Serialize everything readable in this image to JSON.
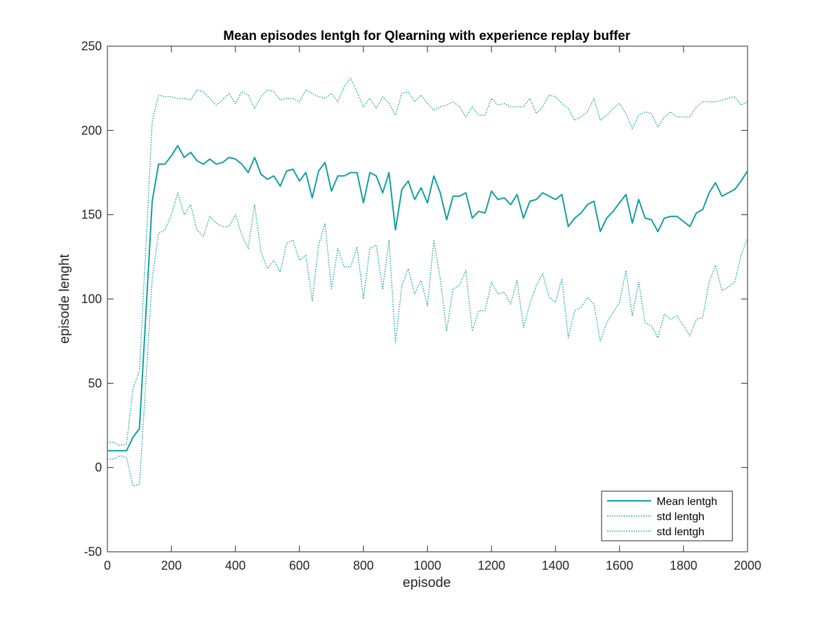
{
  "chart_data": {
    "type": "line",
    "title": "Mean episodes lentgh for Qlearning with experience replay buffer",
    "xlabel": "episode",
    "ylabel": "episode lenght",
    "xlim": [
      0,
      2000
    ],
    "ylim": [
      -50,
      250
    ],
    "xticks": [
      0,
      200,
      400,
      600,
      800,
      1000,
      1200,
      1400,
      1600,
      1800,
      2000
    ],
    "yticks": [
      -50,
      0,
      50,
      100,
      150,
      200,
      250
    ],
    "grid": false,
    "legend_position": "bottom-right",
    "line_color": "#109e9e",
    "x": [
      0,
      20,
      40,
      60,
      80,
      100,
      120,
      140,
      160,
      180,
      200,
      220,
      240,
      260,
      280,
      300,
      320,
      340,
      360,
      380,
      400,
      420,
      440,
      460,
      480,
      500,
      520,
      540,
      560,
      580,
      600,
      620,
      640,
      660,
      680,
      700,
      720,
      740,
      760,
      780,
      800,
      820,
      840,
      860,
      880,
      900,
      920,
      940,
      960,
      980,
      1000,
      1020,
      1040,
      1060,
      1080,
      1100,
      1120,
      1140,
      1160,
      1180,
      1200,
      1220,
      1240,
      1260,
      1280,
      1300,
      1320,
      1340,
      1360,
      1380,
      1400,
      1420,
      1440,
      1460,
      1480,
      1500,
      1520,
      1540,
      1560,
      1580,
      1600,
      1620,
      1640,
      1660,
      1680,
      1700,
      1720,
      1740,
      1760,
      1780,
      1800,
      1820,
      1840,
      1860,
      1880,
      1900,
      1920,
      1940,
      1960,
      1980,
      2000
    ],
    "series": [
      {
        "name": "Mean lentgh",
        "style": "solid",
        "values": [
          10,
          10,
          10,
          10,
          18,
          23,
          90,
          158,
          180,
          180,
          185,
          191,
          184,
          187,
          182,
          180,
          183,
          180,
          181,
          184,
          183,
          180,
          175,
          184,
          174,
          171,
          173,
          167,
          176,
          177,
          170,
          175,
          160,
          176,
          181,
          164,
          173,
          173,
          175,
          175,
          157,
          175,
          173,
          163,
          175,
          141,
          165,
          170,
          159,
          166,
          157,
          173,
          163,
          147,
          161,
          161,
          163,
          148,
          152,
          151,
          164,
          159,
          160,
          156,
          162,
          148,
          158,
          159,
          163,
          161,
          159,
          162,
          143,
          148,
          151,
          156,
          158,
          140,
          148,
          152,
          157,
          162,
          145,
          159,
          148,
          147,
          140,
          148,
          149,
          149,
          146,
          143,
          151,
          153,
          163,
          169,
          161,
          163,
          165,
          170,
          176
        ]
      },
      {
        "name": "std lentgh",
        "style": "dotted",
        "values": [
          15,
          15,
          13,
          14,
          47,
          57,
          130,
          205,
          221,
          220,
          220,
          219,
          219,
          218,
          224,
          223,
          219,
          215,
          218,
          222,
          216,
          223,
          221,
          213,
          220,
          224,
          223,
          218,
          219,
          219,
          217,
          224,
          222,
          220,
          219,
          222,
          217,
          226,
          231,
          223,
          214,
          219,
          213,
          220,
          216,
          209,
          222,
          223,
          217,
          221,
          216,
          212,
          214,
          215,
          217,
          214,
          208,
          214,
          209,
          209,
          219,
          215,
          216,
          214,
          214,
          214,
          219,
          210,
          214,
          221,
          220,
          216,
          213,
          206,
          208,
          211,
          219,
          206,
          209,
          213,
          216,
          210,
          201,
          209,
          211,
          210,
          202,
          208,
          211,
          208,
          208,
          208,
          214,
          217,
          217,
          217,
          218,
          219,
          220,
          215,
          217
        ]
      },
      {
        "name": "std lentgh",
        "style": "dotted",
        "values": [
          5,
          5,
          7,
          6,
          -11,
          -10,
          50,
          112,
          139,
          141,
          150,
          163,
          150,
          156,
          141,
          137,
          149,
          145,
          143,
          143,
          150,
          138,
          130,
          156,
          128,
          118,
          123,
          116,
          133,
          135,
          123,
          126,
          99,
          132,
          145,
          106,
          130,
          119,
          119,
          131,
          100,
          130,
          132,
          106,
          135,
          74,
          108,
          118,
          103,
          111,
          96,
          135,
          112,
          81,
          106,
          108,
          117,
          81,
          93,
          93,
          110,
          103,
          104,
          97,
          111,
          83,
          97,
          108,
          115,
          101,
          98,
          112,
          77,
          93,
          95,
          101,
          97,
          75,
          86,
          92,
          98,
          117,
          90,
          110,
          86,
          84,
          77,
          91,
          88,
          90,
          84,
          78,
          88,
          89,
          110,
          120,
          105,
          107,
          110,
          126,
          136
        ]
      }
    ]
  }
}
